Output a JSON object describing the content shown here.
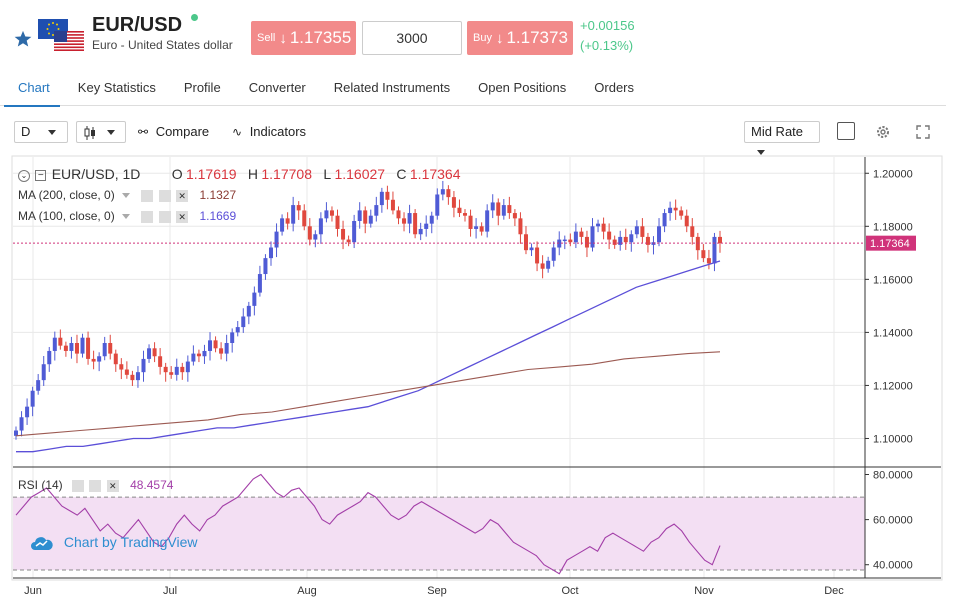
{
  "header": {
    "symbol": "EUR/USD",
    "description": "Euro - United States dollar",
    "sell_label": "Sell",
    "sell_price": "1.17355",
    "quantity": "3000",
    "buy_label": "Buy",
    "buy_price": "1.17373",
    "change_abs": "+0.00156",
    "change_pct": "(+0.13%)",
    "colors": {
      "sell": "#f28a8a",
      "buy": "#f28a8a",
      "up": "#4cc78a"
    }
  },
  "tabs": [
    "Chart",
    "Key Statistics",
    "Profile",
    "Converter",
    "Related Instruments",
    "Open Positions",
    "Orders"
  ],
  "toolbar": {
    "interval": "D",
    "compare": "Compare",
    "indicators": "Indicators",
    "price_mode": "Mid Rate"
  },
  "legend": {
    "symbol": "EUR/USD, 1D",
    "o_label": "O",
    "o": "1.17619",
    "h_label": "H",
    "h": "1.17708",
    "l_label": "L",
    "l": "1.16027",
    "c_label": "C",
    "c": "1.17364",
    "ma200_label": "MA (200, close, 0)",
    "ma200": "1.1327",
    "ma100_label": "MA (100, close, 0)",
    "ma100": "1.1669",
    "rsi_label": "RSI (14)",
    "rsi": "48.4574"
  },
  "price_axis": [
    "1.20000",
    "1.18000",
    "1.16000",
    "1.14000",
    "1.12000",
    "1.10000"
  ],
  "last_price_tag": "1.17364",
  "rsi_axis": [
    "80.0000",
    "60.0000",
    "40.0000"
  ],
  "time_axis": [
    "Jun",
    "Jul",
    "Aug",
    "Sep",
    "Oct",
    "Nov",
    "Dec"
  ],
  "watermark": "Chart by TradingView",
  "colors": {
    "up_candle": "#4f5bd5",
    "down_candle": "#e0483e",
    "ma100": "#5b4fd8",
    "ma200": "#9c5a52",
    "rsi": "#a33fa8",
    "rsi_band": "#f3dff3",
    "accent": "#2477c0"
  },
  "chart_data": {
    "type": "candlestick",
    "y_range": [
      1.09,
      1.205
    ],
    "close": [
      1.103,
      1.108,
      1.112,
      1.118,
      1.122,
      1.128,
      1.133,
      1.138,
      1.135,
      1.133,
      1.136,
      1.132,
      1.138,
      1.13,
      1.129,
      1.131,
      1.136,
      1.132,
      1.128,
      1.126,
      1.124,
      1.122,
      1.125,
      1.13,
      1.134,
      1.131,
      1.127,
      1.125,
      1.124,
      1.127,
      1.125,
      1.129,
      1.132,
      1.131,
      1.133,
      1.137,
      1.134,
      1.132,
      1.136,
      1.14,
      1.142,
      1.146,
      1.15,
      1.155,
      1.162,
      1.168,
      1.172,
      1.178,
      1.183,
      1.181,
      1.188,
      1.186,
      1.18,
      1.175,
      1.177,
      1.183,
      1.186,
      1.184,
      1.179,
      1.175,
      1.174,
      1.182,
      1.186,
      1.181,
      1.184,
      1.188,
      1.193,
      1.19,
      1.186,
      1.183,
      1.181,
      1.185,
      1.177,
      1.179,
      1.181,
      1.184,
      1.192,
      1.194,
      1.191,
      1.187,
      1.185,
      1.184,
      1.179,
      1.18,
      1.178,
      1.186,
      1.189,
      1.184,
      1.188,
      1.185,
      1.183,
      1.177,
      1.171,
      1.172,
      1.166,
      1.164,
      1.167,
      1.172,
      1.175,
      1.175,
      1.174,
      1.178,
      1.176,
      1.172,
      1.18,
      1.181,
      1.178,
      1.175,
      1.173,
      1.176,
      1.174,
      1.177,
      1.18,
      1.176,
      1.173,
      1.174,
      1.18,
      1.185,
      1.187,
      1.186,
      1.184,
      1.18,
      1.176,
      1.171,
      1.168,
      1.166,
      1.176,
      1.17364
    ],
    "ma100": [
      1.095,
      1.095,
      1.096,
      1.097,
      1.097,
      1.098,
      1.099,
      1.1,
      1.1,
      1.101,
      1.102,
      1.103,
      1.104,
      1.104,
      1.105,
      1.106,
      1.107,
      1.108,
      1.109,
      1.11,
      1.111,
      1.112,
      1.114,
      1.116,
      1.118,
      1.121,
      1.124,
      1.127,
      1.13,
      1.133,
      1.136,
      1.139,
      1.142,
      1.145,
      1.148,
      1.151,
      1.154,
      1.157,
      1.159,
      1.161,
      1.163,
      1.165,
      1.1669
    ],
    "ma200": [
      1.101,
      1.102,
      1.103,
      1.104,
      1.105,
      1.106,
      1.107,
      1.109,
      1.11,
      1.112,
      1.114,
      1.116,
      1.118,
      1.12,
      1.122,
      1.124,
      1.126,
      1.127,
      1.128,
      1.13,
      1.131,
      1.132,
      1.1327
    ],
    "rsi": [
      62,
      66,
      70,
      72,
      74,
      70,
      66,
      64,
      62,
      65,
      60,
      55,
      58,
      54,
      52,
      56,
      60,
      55,
      50,
      48,
      52,
      58,
      62,
      58,
      55,
      60,
      62,
      66,
      68,
      70,
      74,
      78,
      80,
      76,
      72,
      70,
      73,
      74,
      70,
      66,
      60,
      58,
      62,
      64,
      66,
      68,
      72,
      70,
      66,
      62,
      60,
      62,
      66,
      68,
      66,
      64,
      62,
      60,
      58,
      56,
      54,
      56,
      60,
      58,
      54,
      50,
      48,
      46,
      44,
      40,
      38,
      36,
      42,
      44,
      46,
      48,
      46,
      52,
      54,
      52,
      50,
      48,
      46,
      50,
      52,
      56,
      58,
      55,
      50,
      46,
      42,
      40,
      48.4574
    ],
    "rsi_range": [
      35,
      82
    ],
    "rsi_levels": [
      70,
      30
    ]
  }
}
